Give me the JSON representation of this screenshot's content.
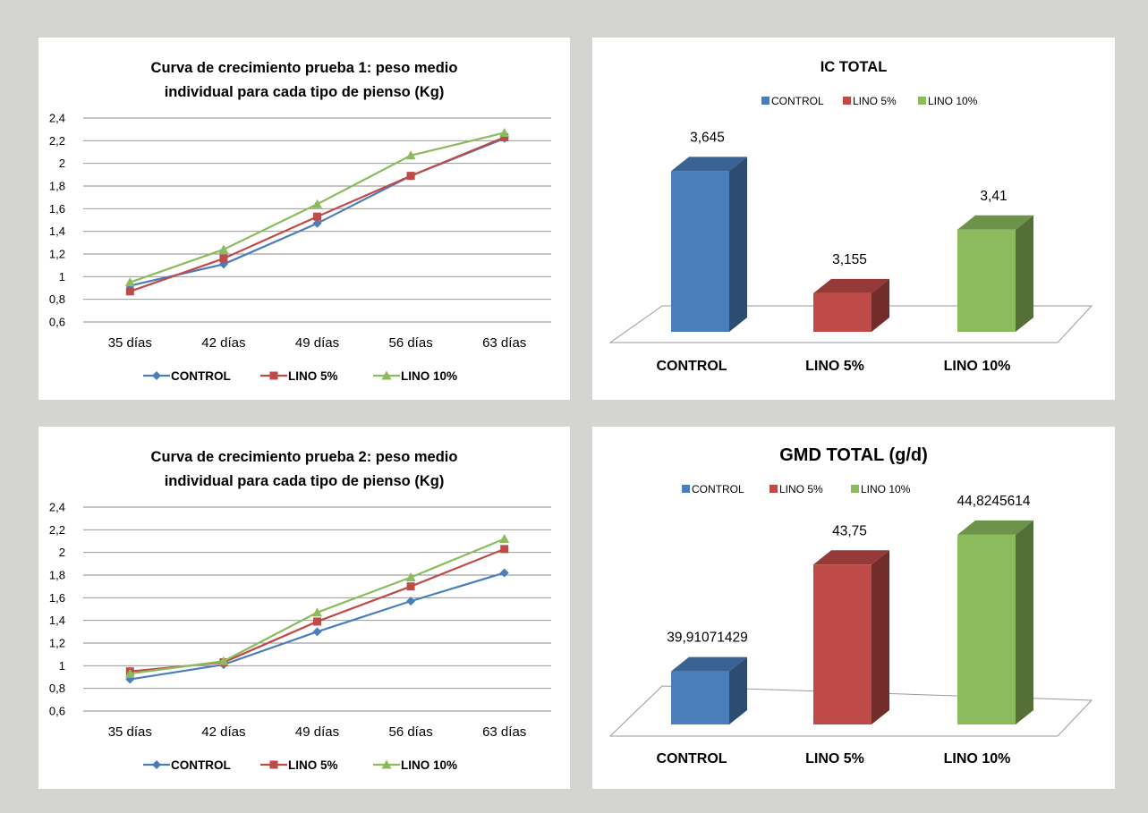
{
  "colors": {
    "control": "#4a7ebb",
    "lino5": "#be4b48",
    "lino10": "#8cbb5e"
  },
  "chart_data": [
    {
      "id": "line1",
      "type": "line",
      "title_lines": [
        "Curva de crecimiento prueba 1: peso medio",
        "individual para cada tipo de pienso (Kg)"
      ],
      "categories": [
        "35 días",
        "42 días",
        "49 días",
        "56 días",
        "63 días"
      ],
      "yticks": [
        "0,6",
        "0,8",
        "1",
        "1,2",
        "1,4",
        "1,6",
        "1,8",
        "2",
        "2,2",
        "2,4"
      ],
      "ylim": [
        0.6,
        2.4
      ],
      "grid": true,
      "legend_position": "bottom",
      "series": [
        {
          "name": "CONTROL",
          "values": [
            0.92,
            1.11,
            1.47,
            1.89,
            2.22
          ]
        },
        {
          "name": "LINO 5%",
          "values": [
            0.87,
            1.16,
            1.53,
            1.89,
            2.23
          ]
        },
        {
          "name": "LINO 10%",
          "values": [
            0.95,
            1.24,
            1.64,
            2.07,
            2.27
          ]
        }
      ]
    },
    {
      "id": "bar1",
      "type": "bar",
      "title": "IC TOTAL",
      "categories": [
        "CONTROL",
        "LINO 5%",
        "LINO 10%"
      ],
      "values": [
        3.645,
        3.155,
        3.41
      ],
      "labels": [
        "3,645",
        "3,155",
        "3,41"
      ],
      "legend": [
        "CONTROL",
        "LINO 5%",
        "LINO 10%"
      ],
      "legend_position": "top",
      "ylim": [
        3.0,
        3.7
      ]
    },
    {
      "id": "line2",
      "type": "line",
      "title_lines": [
        "Curva de crecimiento prueba 2: peso medio",
        "individual para cada tipo de pienso (Kg)"
      ],
      "categories": [
        "35 días",
        "42 días",
        "49 días",
        "56 días",
        "63 días"
      ],
      "yticks": [
        "0,6",
        "0,8",
        "1",
        "1,2",
        "1,4",
        "1,6",
        "1,8",
        "2",
        "2,2",
        "2,4"
      ],
      "ylim": [
        0.6,
        2.4
      ],
      "grid": true,
      "legend_position": "bottom",
      "series": [
        {
          "name": "CONTROL",
          "values": [
            0.88,
            1.01,
            1.3,
            1.57,
            1.82
          ]
        },
        {
          "name": "LINO 5%",
          "values": [
            0.95,
            1.03,
            1.39,
            1.7,
            2.03
          ]
        },
        {
          "name": "LINO 10%",
          "values": [
            0.93,
            1.04,
            1.47,
            1.78,
            2.12
          ]
        }
      ]
    },
    {
      "id": "bar2",
      "type": "bar",
      "title": "GMD TOTAL (g/d)",
      "categories": [
        "CONTROL",
        "LINO 5%",
        "LINO 10%"
      ],
      "values": [
        39.91071429,
        43.75,
        44.8245614
      ],
      "labels": [
        "39,91071429",
        "43,75",
        "44,8245614"
      ],
      "legend": [
        "CONTROL",
        "LINO 5%",
        "LINO 10%"
      ],
      "legend_position": "top",
      "ylim": [
        38.0,
        45.4
      ]
    }
  ]
}
